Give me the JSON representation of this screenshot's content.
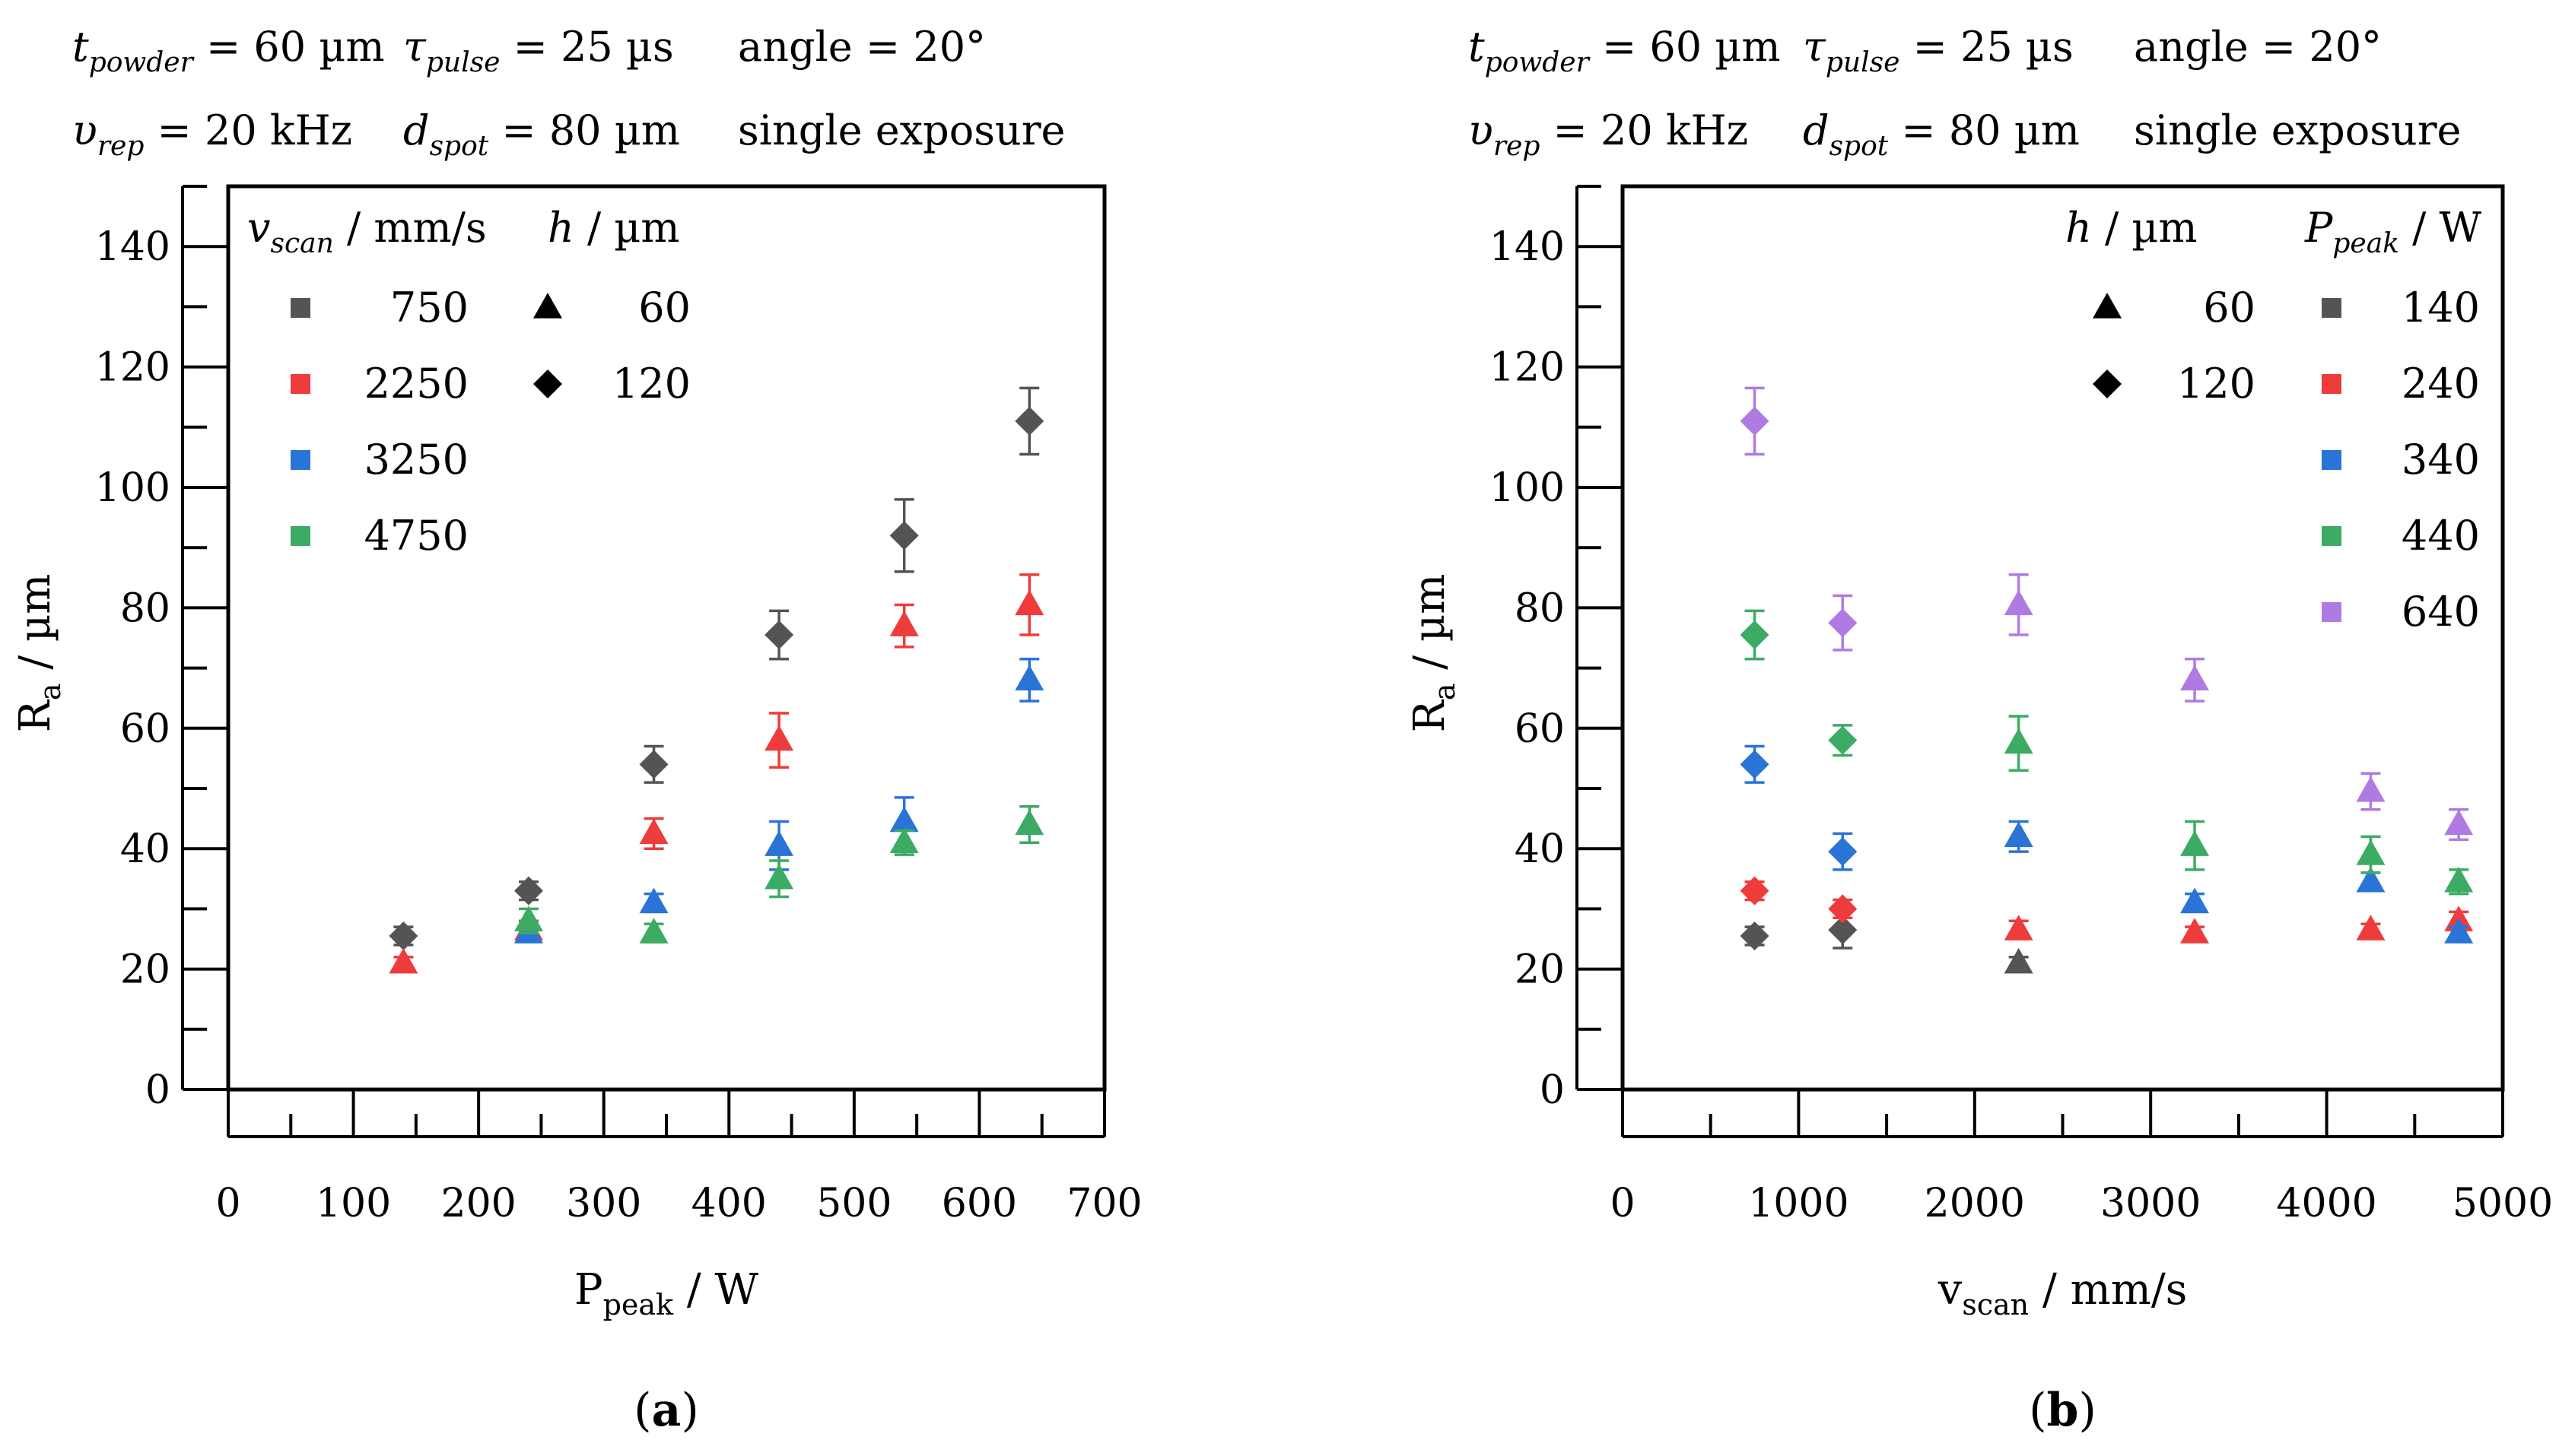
{
  "colors": {
    "c750": "#545454",
    "c2250": "#ee3b3b",
    "c3250": "#2a74d8",
    "c4750": "#3cab63",
    "c640": "#b07ae3",
    "black": "#000000"
  },
  "chart_data": [
    {
      "id": "a",
      "type": "scatter",
      "caption": "a",
      "params": {
        "t_powder": {
          "sym": "t",
          "sub": "powder",
          "value": "= 60 µm"
        },
        "tau_pulse": {
          "sym": "τ",
          "sub": "pulse",
          "value": "= 25 µs"
        },
        "angle": "angle = 20°",
        "v_rep": {
          "sym": "υ",
          "sub": "rep",
          "value": "= 20 kHz"
        },
        "d_spot": {
          "sym": "d",
          "sub": "spot",
          "value": "= 80 µm"
        },
        "exposure": "single exposure"
      },
      "xlabel": {
        "main": "P",
        "sub": "peak",
        "unit": " / W"
      },
      "ylabel": {
        "main": "R",
        "sub": "a",
        "unit": " / µm"
      },
      "xlim": [
        0,
        700
      ],
      "ylim": [
        0,
        150
      ],
      "xticks": [
        0,
        100,
        200,
        300,
        400,
        500,
        600,
        700
      ],
      "yticks": [
        0,
        20,
        40,
        60,
        80,
        100,
        120,
        140
      ],
      "legend": {
        "position": "top-left",
        "header1": {
          "sym": "v",
          "sub": "scan",
          "unit": " / mm/s"
        },
        "header2": {
          "sym": "h",
          "unit": " / µm"
        },
        "color_entries": [
          {
            "label": "750",
            "color": "#545454"
          },
          {
            "label": "2250",
            "color": "#ee3b3b"
          },
          {
            "label": "3250",
            "color": "#2a74d8"
          },
          {
            "label": "4750",
            "color": "#3cab63"
          }
        ],
        "marker_entries": [
          {
            "label": "60",
            "marker": "triangle"
          },
          {
            "label": "120",
            "marker": "diamond"
          }
        ]
      },
      "points": [
        {
          "group": "750",
          "marker": "diamond",
          "x": 140,
          "y": 25.5,
          "err": 1.5,
          "color": "#545454"
        },
        {
          "group": "750",
          "marker": "diamond",
          "x": 240,
          "y": 33,
          "err": 1.5,
          "color": "#545454"
        },
        {
          "group": "750",
          "marker": "diamond",
          "x": 340,
          "y": 54,
          "err": 3,
          "color": "#545454"
        },
        {
          "group": "750",
          "marker": "diamond",
          "x": 440,
          "y": 75.5,
          "err": 4,
          "color": "#545454"
        },
        {
          "group": "750",
          "marker": "diamond",
          "x": 540,
          "y": 92,
          "err": 6,
          "color": "#545454"
        },
        {
          "group": "750",
          "marker": "diamond",
          "x": 640,
          "y": 111,
          "err": 5.5,
          "color": "#545454"
        },
        {
          "group": "2250",
          "marker": "triangle",
          "x": 140,
          "y": 21,
          "err": 1,
          "color": "#ee3b3b"
        },
        {
          "group": "2250",
          "marker": "triangle",
          "x": 240,
          "y": 26.5,
          "err": 1.5,
          "color": "#ee3b3b"
        },
        {
          "group": "2250",
          "marker": "triangle",
          "x": 340,
          "y": 42.5,
          "err": 2.5,
          "color": "#ee3b3b"
        },
        {
          "group": "2250",
          "marker": "triangle",
          "x": 440,
          "y": 58,
          "err": 4.5,
          "color": "#ee3b3b"
        },
        {
          "group": "2250",
          "marker": "triangle",
          "x": 540,
          "y": 77,
          "err": 3.5,
          "color": "#ee3b3b"
        },
        {
          "group": "2250",
          "marker": "triangle",
          "x": 640,
          "y": 80.5,
          "err": 5,
          "color": "#ee3b3b"
        },
        {
          "group": "3250",
          "marker": "triangle",
          "x": 240,
          "y": 26,
          "err": 1,
          "color": "#2a74d8"
        },
        {
          "group": "3250",
          "marker": "triangle",
          "x": 340,
          "y": 31,
          "err": 1.5,
          "color": "#2a74d8"
        },
        {
          "group": "3250",
          "marker": "triangle",
          "x": 440,
          "y": 40.5,
          "err": 4,
          "color": "#2a74d8"
        },
        {
          "group": "3250",
          "marker": "triangle",
          "x": 540,
          "y": 44.5,
          "err": 4,
          "color": "#2a74d8"
        },
        {
          "group": "3250",
          "marker": "triangle",
          "x": 640,
          "y": 68,
          "err": 3.5,
          "color": "#2a74d8"
        },
        {
          "group": "4750",
          "marker": "triangle",
          "x": 240,
          "y": 28,
          "err": 2,
          "color": "#3cab63"
        },
        {
          "group": "4750",
          "marker": "triangle",
          "x": 340,
          "y": 26,
          "err": 1.5,
          "color": "#3cab63"
        },
        {
          "group": "4750",
          "marker": "triangle",
          "x": 440,
          "y": 35,
          "err": 3,
          "color": "#3cab63"
        },
        {
          "group": "4750",
          "marker": "triangle",
          "x": 540,
          "y": 41,
          "err": 2,
          "color": "#3cab63"
        },
        {
          "group": "4750",
          "marker": "triangle",
          "x": 640,
          "y": 44,
          "err": 3,
          "color": "#3cab63"
        }
      ]
    },
    {
      "id": "b",
      "type": "scatter",
      "caption": "b",
      "params": {
        "t_powder": {
          "sym": "t",
          "sub": "powder",
          "value": "= 60 µm"
        },
        "tau_pulse": {
          "sym": "τ",
          "sub": "pulse",
          "value": "= 25 µs"
        },
        "angle": "angle = 20°",
        "v_rep": {
          "sym": "υ",
          "sub": "rep",
          "value": "= 20 kHz"
        },
        "d_spot": {
          "sym": "d",
          "sub": "spot",
          "value": "= 80 µm"
        },
        "exposure": "single exposure"
      },
      "xlabel": {
        "main": "v",
        "sub": "scan",
        "unit": " / mm/s"
      },
      "ylabel": {
        "main": "R",
        "sub": "a",
        "unit": " / µm"
      },
      "xlim": [
        0,
        5000
      ],
      "ylim": [
        0,
        150
      ],
      "xticks": [
        0,
        1000,
        2000,
        3000,
        4000,
        5000
      ],
      "yticks": [
        0,
        20,
        40,
        60,
        80,
        100,
        120,
        140
      ],
      "legend": {
        "position": "top-right",
        "header1": {
          "sym": "h",
          "unit": " / µm"
        },
        "header2": {
          "sym": "P",
          "sub": "peak",
          "unit": " / W"
        },
        "marker_entries": [
          {
            "label": "60",
            "marker": "triangle"
          },
          {
            "label": "120",
            "marker": "diamond"
          }
        ],
        "color_entries": [
          {
            "label": "140",
            "color": "#545454"
          },
          {
            "label": "240",
            "color": "#ee3b3b"
          },
          {
            "label": "340",
            "color": "#2a74d8"
          },
          {
            "label": "440",
            "color": "#3cab63"
          },
          {
            "label": "640",
            "color": "#b07ae3"
          }
        ]
      },
      "points": [
        {
          "group": "140",
          "marker": "diamond",
          "x": 750,
          "y": 25.5,
          "err": 1.5,
          "color": "#545454"
        },
        {
          "group": "140",
          "marker": "diamond",
          "x": 1250,
          "y": 26.5,
          "err": 3,
          "color": "#545454"
        },
        {
          "group": "140",
          "marker": "triangle",
          "x": 2250,
          "y": 21,
          "err": 1,
          "color": "#545454"
        },
        {
          "group": "240",
          "marker": "diamond",
          "x": 750,
          "y": 33,
          "err": 1.5,
          "color": "#ee3b3b"
        },
        {
          "group": "240",
          "marker": "diamond",
          "x": 1250,
          "y": 30,
          "err": 1.5,
          "color": "#ee3b3b"
        },
        {
          "group": "240",
          "marker": "triangle",
          "x": 2250,
          "y": 26.5,
          "err": 1.5,
          "color": "#ee3b3b"
        },
        {
          "group": "240",
          "marker": "triangle",
          "x": 3250,
          "y": 26,
          "err": 1,
          "color": "#ee3b3b"
        },
        {
          "group": "240",
          "marker": "triangle",
          "x": 4250,
          "y": 26.5,
          "err": 1,
          "color": "#ee3b3b"
        },
        {
          "group": "240",
          "marker": "triangle",
          "x": 4750,
          "y": 28,
          "err": 1.5,
          "color": "#ee3b3b"
        },
        {
          "group": "340",
          "marker": "diamond",
          "x": 750,
          "y": 54,
          "err": 3,
          "color": "#2a74d8"
        },
        {
          "group": "340",
          "marker": "diamond",
          "x": 1250,
          "y": 39.5,
          "err": 3,
          "color": "#2a74d8"
        },
        {
          "group": "340",
          "marker": "triangle",
          "x": 2250,
          "y": 42,
          "err": 2.5,
          "color": "#2a74d8"
        },
        {
          "group": "340",
          "marker": "triangle",
          "x": 3250,
          "y": 31,
          "err": 1.5,
          "color": "#2a74d8"
        },
        {
          "group": "340",
          "marker": "triangle",
          "x": 4250,
          "y": 34.5,
          "err": 1.5,
          "color": "#2a74d8"
        },
        {
          "group": "340",
          "marker": "triangle",
          "x": 4750,
          "y": 26,
          "err": 1,
          "color": "#2a74d8"
        },
        {
          "group": "440",
          "marker": "diamond",
          "x": 750,
          "y": 75.5,
          "err": 4,
          "color": "#3cab63"
        },
        {
          "group": "440",
          "marker": "diamond",
          "x": 1250,
          "y": 58,
          "err": 2.5,
          "color": "#3cab63"
        },
        {
          "group": "440",
          "marker": "triangle",
          "x": 2250,
          "y": 57.5,
          "err": 4.5,
          "color": "#3cab63"
        },
        {
          "group": "440",
          "marker": "triangle",
          "x": 3250,
          "y": 40.5,
          "err": 4,
          "color": "#3cab63"
        },
        {
          "group": "440",
          "marker": "triangle",
          "x": 4250,
          "y": 39,
          "err": 3,
          "color": "#3cab63"
        },
        {
          "group": "440",
          "marker": "triangle",
          "x": 4750,
          "y": 34.5,
          "err": 2,
          "color": "#3cab63"
        },
        {
          "group": "640",
          "marker": "diamond",
          "x": 750,
          "y": 111,
          "err": 5.5,
          "color": "#b07ae3"
        },
        {
          "group": "640",
          "marker": "diamond",
          "x": 1250,
          "y": 77.5,
          "err": 4.5,
          "color": "#b07ae3"
        },
        {
          "group": "640",
          "marker": "triangle",
          "x": 2250,
          "y": 80.5,
          "err": 5,
          "color": "#b07ae3"
        },
        {
          "group": "640",
          "marker": "triangle",
          "x": 3250,
          "y": 68,
          "err": 3.5,
          "color": "#b07ae3"
        },
        {
          "group": "640",
          "marker": "triangle",
          "x": 4250,
          "y": 49.5,
          "err": 3,
          "color": "#b07ae3"
        },
        {
          "group": "640",
          "marker": "triangle",
          "x": 4750,
          "y": 44,
          "err": 2.5,
          "color": "#b07ae3"
        }
      ]
    }
  ]
}
